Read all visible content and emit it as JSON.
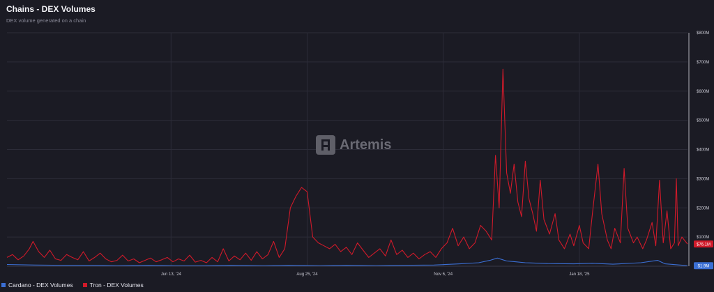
{
  "header": {
    "title": "Chains - DEX Volumes",
    "subtitle": "DEX volume generated on a chain"
  },
  "watermark": {
    "text": "Artemis"
  },
  "legend": {
    "items": [
      {
        "label": "Cardano - DEX Volumes",
        "color": "#3b6fd4"
      },
      {
        "label": "Tron - DEX Volumes",
        "color": "#d01a2a"
      }
    ]
  },
  "chart_data": {
    "type": "line",
    "title": "Chains - DEX Volumes",
    "subtitle": "DEX volume generated on a chain",
    "x_start": "2024-03-17",
    "x_end": "2025-03-17",
    "x_ticks": [
      {
        "date": "2024-06-13",
        "label": "Jun 13, '24"
      },
      {
        "date": "2024-08-25",
        "label": "Aug 25, '24"
      },
      {
        "date": "2024-11-06",
        "label": "Nov 6, '24"
      },
      {
        "date": "2025-01-18",
        "label": "Jan 18, '25"
      }
    ],
    "y_ticks": [
      {
        "value": 100,
        "label": "$100M"
      },
      {
        "value": 200,
        "label": "$200M"
      },
      {
        "value": 300,
        "label": "$300M"
      },
      {
        "value": 400,
        "label": "$400M"
      },
      {
        "value": 500,
        "label": "$500M"
      },
      {
        "value": 600,
        "label": "$600M"
      },
      {
        "value": 700,
        "label": "$700M"
      },
      {
        "value": 800,
        "label": "$800M"
      }
    ],
    "ylim": [
      0,
      800
    ],
    "y_unit": "$M",
    "grid": true,
    "legend_position": "bottom-left",
    "series": [
      {
        "name": "Tron - DEX Volumes",
        "color": "#d01a2a",
        "last_value_label": "$76.1M",
        "points": [
          [
            "2024-03-17",
            30
          ],
          [
            "2024-03-20",
            40
          ],
          [
            "2024-03-23",
            22
          ],
          [
            "2024-03-26",
            35
          ],
          [
            "2024-03-29",
            60
          ],
          [
            "2024-03-31",
            85
          ],
          [
            "2024-04-03",
            50
          ],
          [
            "2024-04-06",
            30
          ],
          [
            "2024-04-09",
            55
          ],
          [
            "2024-04-12",
            25
          ],
          [
            "2024-04-15",
            20
          ],
          [
            "2024-04-18",
            40
          ],
          [
            "2024-04-21",
            30
          ],
          [
            "2024-04-24",
            22
          ],
          [
            "2024-04-27",
            50
          ],
          [
            "2024-04-30",
            18
          ],
          [
            "2024-05-03",
            30
          ],
          [
            "2024-05-06",
            45
          ],
          [
            "2024-05-09",
            25
          ],
          [
            "2024-05-12",
            15
          ],
          [
            "2024-05-15",
            20
          ],
          [
            "2024-05-18",
            38
          ],
          [
            "2024-05-21",
            18
          ],
          [
            "2024-05-24",
            25
          ],
          [
            "2024-05-27",
            12
          ],
          [
            "2024-05-30",
            20
          ],
          [
            "2024-06-02",
            28
          ],
          [
            "2024-06-05",
            15
          ],
          [
            "2024-06-08",
            22
          ],
          [
            "2024-06-11",
            30
          ],
          [
            "2024-06-14",
            15
          ],
          [
            "2024-06-17",
            25
          ],
          [
            "2024-06-20",
            18
          ],
          [
            "2024-06-23",
            38
          ],
          [
            "2024-06-26",
            14
          ],
          [
            "2024-06-29",
            20
          ],
          [
            "2024-07-02",
            12
          ],
          [
            "2024-07-05",
            30
          ],
          [
            "2024-07-08",
            15
          ],
          [
            "2024-07-11",
            60
          ],
          [
            "2024-07-14",
            18
          ],
          [
            "2024-07-17",
            35
          ],
          [
            "2024-07-20",
            22
          ],
          [
            "2024-07-23",
            45
          ],
          [
            "2024-07-26",
            20
          ],
          [
            "2024-07-29",
            50
          ],
          [
            "2024-08-01",
            25
          ],
          [
            "2024-08-04",
            40
          ],
          [
            "2024-08-07",
            85
          ],
          [
            "2024-08-10",
            30
          ],
          [
            "2024-08-13",
            60
          ],
          [
            "2024-08-16",
            200
          ],
          [
            "2024-08-19",
            240
          ],
          [
            "2024-08-22",
            270
          ],
          [
            "2024-08-25",
            255
          ],
          [
            "2024-08-28",
            100
          ],
          [
            "2024-08-31",
            80
          ],
          [
            "2024-09-03",
            70
          ],
          [
            "2024-09-06",
            60
          ],
          [
            "2024-09-09",
            75
          ],
          [
            "2024-09-12",
            50
          ],
          [
            "2024-09-15",
            65
          ],
          [
            "2024-09-18",
            40
          ],
          [
            "2024-09-21",
            80
          ],
          [
            "2024-09-24",
            55
          ],
          [
            "2024-09-27",
            30
          ],
          [
            "2024-09-30",
            45
          ],
          [
            "2024-10-03",
            60
          ],
          [
            "2024-10-06",
            35
          ],
          [
            "2024-10-09",
            90
          ],
          [
            "2024-10-12",
            40
          ],
          [
            "2024-10-15",
            55
          ],
          [
            "2024-10-18",
            30
          ],
          [
            "2024-10-21",
            45
          ],
          [
            "2024-10-24",
            25
          ],
          [
            "2024-10-27",
            40
          ],
          [
            "2024-10-30",
            50
          ],
          [
            "2024-11-02",
            30
          ],
          [
            "2024-11-05",
            60
          ],
          [
            "2024-11-08",
            80
          ],
          [
            "2024-11-11",
            130
          ],
          [
            "2024-11-14",
            70
          ],
          [
            "2024-11-17",
            100
          ],
          [
            "2024-11-20",
            60
          ],
          [
            "2024-11-23",
            80
          ],
          [
            "2024-11-26",
            140
          ],
          [
            "2024-11-29",
            120
          ],
          [
            "2024-12-02",
            90
          ],
          [
            "2024-12-04",
            380
          ],
          [
            "2024-12-06",
            200
          ],
          [
            "2024-12-08",
            675
          ],
          [
            "2024-12-10",
            320
          ],
          [
            "2024-12-12",
            250
          ],
          [
            "2024-12-14",
            350
          ],
          [
            "2024-12-16",
            220
          ],
          [
            "2024-12-18",
            170
          ],
          [
            "2024-12-20",
            360
          ],
          [
            "2024-12-22",
            230
          ],
          [
            "2024-12-24",
            180
          ],
          [
            "2024-12-26",
            120
          ],
          [
            "2024-12-28",
            295
          ],
          [
            "2024-12-30",
            160
          ],
          [
            "2025-01-02",
            110
          ],
          [
            "2025-01-05",
            180
          ],
          [
            "2025-01-07",
            90
          ],
          [
            "2025-01-10",
            60
          ],
          [
            "2025-01-13",
            110
          ],
          [
            "2025-01-15",
            70
          ],
          [
            "2025-01-18",
            140
          ],
          [
            "2025-01-20",
            80
          ],
          [
            "2025-01-23",
            60
          ],
          [
            "2025-01-25",
            180
          ],
          [
            "2025-01-28",
            350
          ],
          [
            "2025-01-30",
            180
          ],
          [
            "2025-02-02",
            90
          ],
          [
            "2025-02-04",
            60
          ],
          [
            "2025-02-06",
            130
          ],
          [
            "2025-02-09",
            80
          ],
          [
            "2025-02-11",
            335
          ],
          [
            "2025-02-13",
            130
          ],
          [
            "2025-02-16",
            80
          ],
          [
            "2025-02-18",
            100
          ],
          [
            "2025-02-21",
            60
          ],
          [
            "2025-02-23",
            90
          ],
          [
            "2025-02-26",
            150
          ],
          [
            "2025-02-28",
            70
          ],
          [
            "2025-03-02",
            295
          ],
          [
            "2025-03-04",
            80
          ],
          [
            "2025-03-06",
            190
          ],
          [
            "2025-03-08",
            60
          ],
          [
            "2025-03-10",
            80
          ],
          [
            "2025-03-11",
            300
          ],
          [
            "2025-03-12",
            70
          ],
          [
            "2025-03-14",
            100
          ],
          [
            "2025-03-17",
            76.1
          ]
        ]
      },
      {
        "name": "Cardano - DEX Volumes",
        "color": "#3b6fd4",
        "last_value_label": "$1.9M",
        "points": [
          [
            "2024-03-17",
            6
          ],
          [
            "2024-04-01",
            4
          ],
          [
            "2024-04-15",
            3
          ],
          [
            "2024-05-01",
            3
          ],
          [
            "2024-05-15",
            2
          ],
          [
            "2024-06-01",
            3
          ],
          [
            "2024-06-15",
            2
          ],
          [
            "2024-07-01",
            2
          ],
          [
            "2024-07-15",
            3
          ],
          [
            "2024-08-01",
            2
          ],
          [
            "2024-08-15",
            3
          ],
          [
            "2024-09-01",
            2
          ],
          [
            "2024-09-15",
            3
          ],
          [
            "2024-10-01",
            2
          ],
          [
            "2024-10-15",
            3
          ],
          [
            "2024-11-01",
            4
          ],
          [
            "2024-11-15",
            8
          ],
          [
            "2024-11-25",
            12
          ],
          [
            "2024-12-01",
            20
          ],
          [
            "2024-12-05",
            28
          ],
          [
            "2024-12-10",
            18
          ],
          [
            "2024-12-15",
            15
          ],
          [
            "2024-12-20",
            12
          ],
          [
            "2025-01-01",
            9
          ],
          [
            "2025-01-15",
            8
          ],
          [
            "2025-01-25",
            10
          ],
          [
            "2025-02-05",
            7
          ],
          [
            "2025-02-20",
            12
          ],
          [
            "2025-03-01",
            20
          ],
          [
            "2025-03-05",
            8
          ],
          [
            "2025-03-17",
            1.9
          ]
        ]
      }
    ]
  }
}
